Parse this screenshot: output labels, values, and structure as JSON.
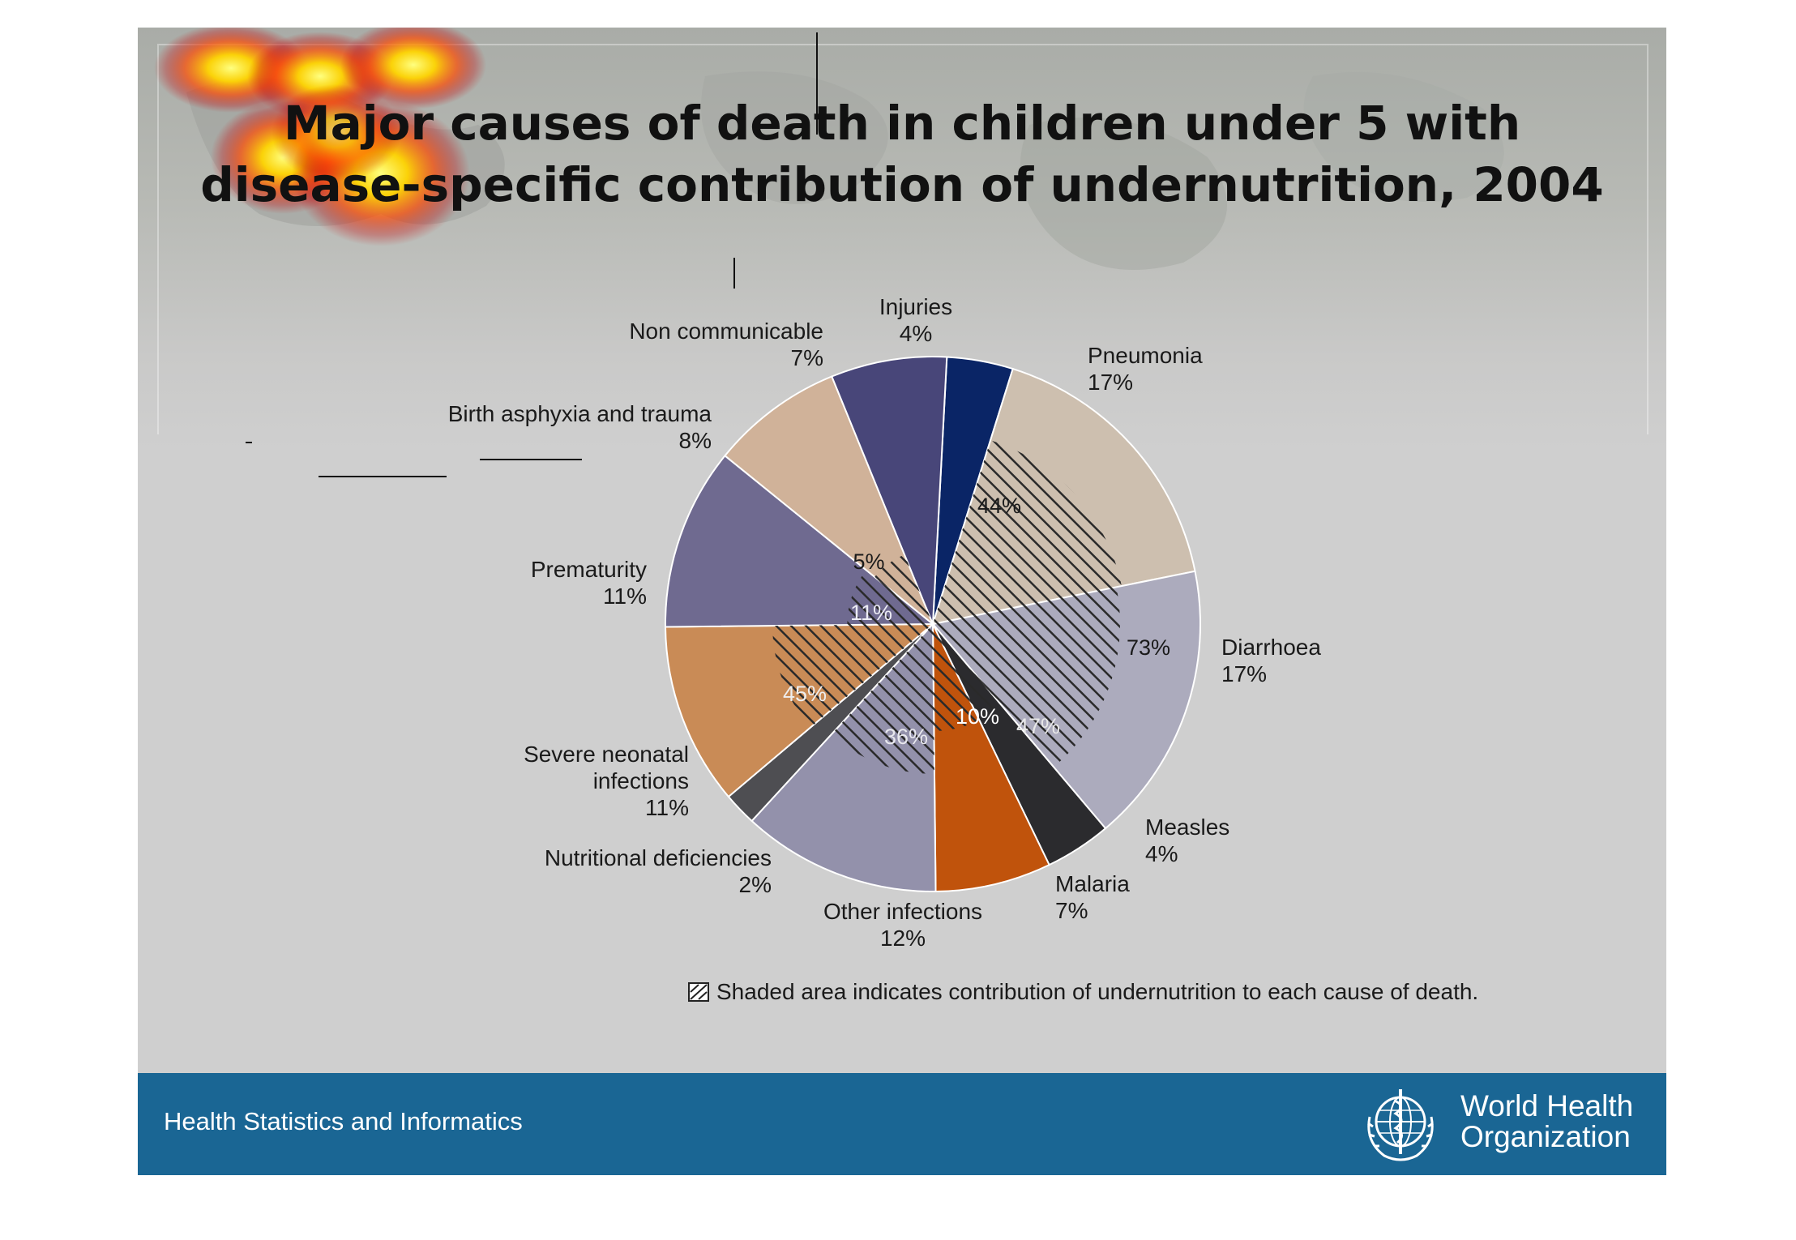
{
  "slide": {
    "title_line1": "Major causes of death in children under 5 with",
    "title_line2": "disease-specific contribution of undernutrition, 2004",
    "footer_left": "Health Statistics and Informatics",
    "org_name_line1": "World Health",
    "org_name_line2": "Organization"
  },
  "colors": {
    "footer": "#1a6694",
    "slide_bg": "#cfcfcf"
  },
  "chart_data": {
    "type": "pie",
    "title": "Major causes of death in children under 5 with disease-specific contribution of undernutrition, 2004",
    "unit": "%",
    "start_angle_deg": 3,
    "direction": "clockwise",
    "slices": [
      {
        "name": "Injuries",
        "label": "Injuries",
        "value": 4,
        "value_label": "4%",
        "color": "#0a2566",
        "undernutrition_share_label": null
      },
      {
        "name": "Pneumonia",
        "label": "Pneumonia",
        "value": 17,
        "value_label": "17%",
        "color": "#cdbfaf",
        "undernutrition_share": 44,
        "undernutrition_share_label": "44%"
      },
      {
        "name": "Diarrhoea",
        "label": "Diarrhoea",
        "value": 17,
        "value_label": "17%",
        "color": "#acabbd",
        "undernutrition_share": 73,
        "undernutrition_share_label": "73%"
      },
      {
        "name": "Measles",
        "label": "Measles",
        "value": 4,
        "value_label": "4%",
        "color": "#2b2b2e",
        "undernutrition_share": 47,
        "undernutrition_share_label": "47%"
      },
      {
        "name": "Malaria",
        "label": "Malaria",
        "value": 7,
        "value_label": "7%",
        "color": "#c0530c",
        "undernutrition_share": 10,
        "undernutrition_share_label": "10%"
      },
      {
        "name": "Other infections",
        "label": "Other infections",
        "value": 12,
        "value_label": "12%",
        "color": "#9391ab",
        "undernutrition_share": 36,
        "undernutrition_share_label": "36%"
      },
      {
        "name": "Nutritional deficiencies",
        "label": "Nutritional deficiencies",
        "value": 2,
        "value_label": "2%",
        "color": "#4e4e52",
        "undernutrition_share_label": null
      },
      {
        "name": "Severe neonatal infections",
        "label": "Severe neonatal\ninfections",
        "value": 11,
        "value_label": "11%",
        "color": "#c98b56",
        "undernutrition_share": 45,
        "undernutrition_share_label": "45%"
      },
      {
        "name": "Prematurity",
        "label": "Prematurity",
        "value": 11,
        "value_label": "11%",
        "color": "#6f6a90",
        "undernutrition_share": 11,
        "undernutrition_share_label": "11%"
      },
      {
        "name": "Birth asphyxia and trauma",
        "label": "Birth asphyxia and trauma",
        "value": 8,
        "value_label": "8%",
        "color": "#d0b299",
        "undernutrition_share": 5,
        "undernutrition_share_label": "5%"
      },
      {
        "name": "Non communicable",
        "label": "Non communicable",
        "value": 7,
        "value_label": "7%",
        "color": "#484679",
        "undernutrition_share_label": null
      }
    ],
    "legend": {
      "text": "Shaded area indicates contribution of undernutrition to each cause of death.",
      "placement": "bottom"
    }
  }
}
